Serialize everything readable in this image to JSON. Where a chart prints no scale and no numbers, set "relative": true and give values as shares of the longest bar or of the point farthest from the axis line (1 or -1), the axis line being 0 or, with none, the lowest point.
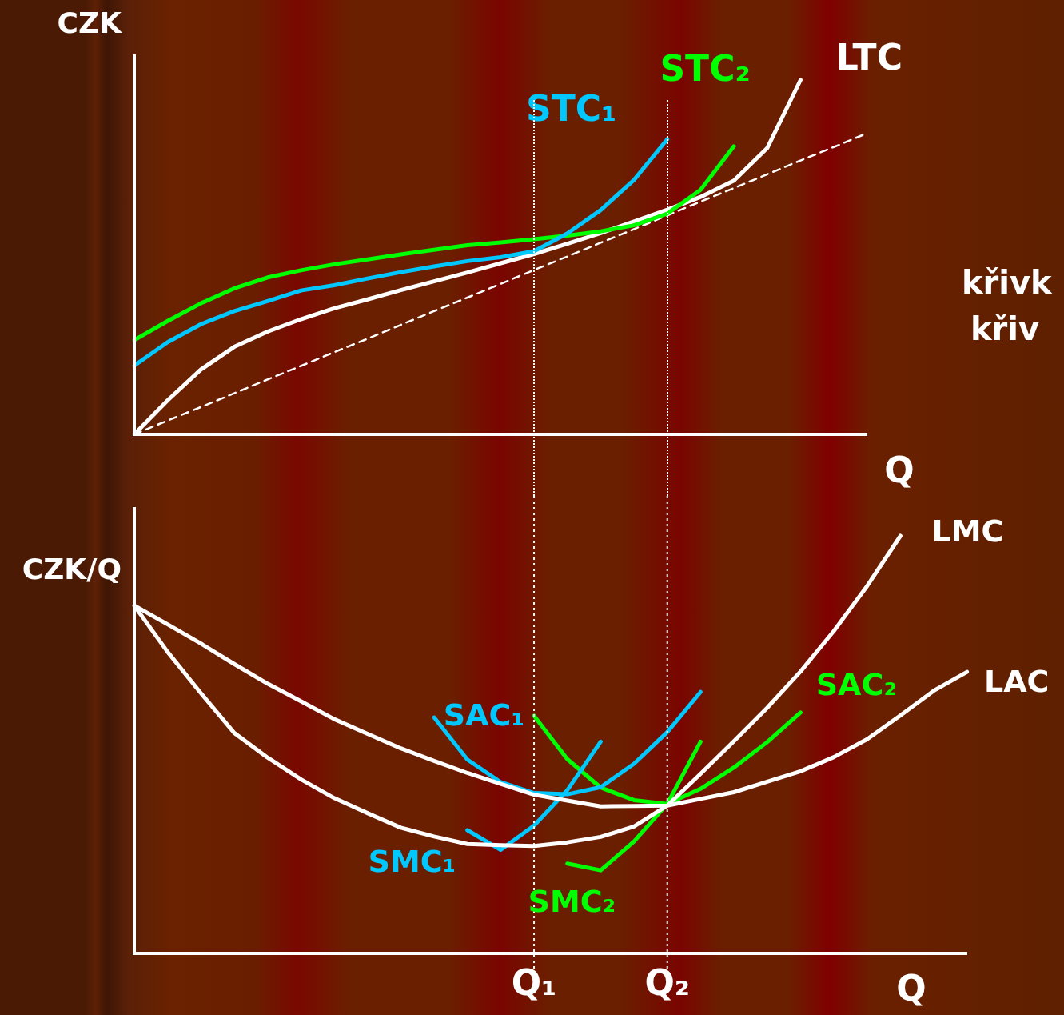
{
  "chart_data": [
    {
      "type": "line",
      "relative": true,
      "ylabel": "CZK",
      "xlabel": "Q",
      "tick_labels": false,
      "annotations": [
        "křivk",
        "křiv"
      ],
      "categories": [
        null,
        null,
        null,
        null,
        null,
        null,
        null,
        null,
        null,
        null,
        null,
        null,
        null,
        null,
        null,
        null,
        null,
        null,
        null,
        null,
        null,
        null,
        null
      ],
      "series": [
        {
          "name": "STC₁",
          "color": "#00c8ff",
          "values": [
            0.194,
            0.26,
            0.311,
            0.348,
            0.376,
            0.406,
            0.421,
            0.44,
            0.458,
            0.474,
            0.489,
            0.5,
            0.517,
            0.567,
            0.633,
            0.718,
            0.833,
            null,
            null,
            null,
            null,
            null,
            null
          ]
        },
        {
          "name": "STC₂",
          "color": "#00ff00",
          "values": [
            0.266,
            0.32,
            0.37,
            0.412,
            0.443,
            0.463,
            0.48,
            0.494,
            0.508,
            0.521,
            0.534,
            0.542,
            0.551,
            0.561,
            0.573,
            0.59,
            0.623,
            0.69,
            0.813,
            null,
            null,
            null,
            null
          ]
        },
        {
          "name": "LTC",
          "color": "#ffffff",
          "values": [
            0,
            0.096,
            0.183,
            0.247,
            0.29,
            0.325,
            0.356,
            0.381,
            0.407,
            0.432,
            0.457,
            0.483,
            0.509,
            0.538,
            0.568,
            0.601,
            0.634,
            0.67,
            0.716,
            0.808,
            1,
            null,
            null
          ]
        },
        {
          "color": "#ffffff",
          "line_style": "dashed",
          "values": [
            0,
            0.039,
            0.077,
            0.116,
            0.155,
            0.193,
            0.232,
            0.27,
            0.309,
            0.348,
            0.386,
            0.425,
            0.464,
            0.502,
            0.541,
            0.579,
            0.618,
            0.657,
            0.695,
            0.734,
            0.773,
            0.811,
            0.85
          ]
        }
      ]
    },
    {
      "type": "line",
      "relative": true,
      "ylabel": "CZK/Q",
      "xlabel": "Q",
      "tick_labels": "x",
      "categories": [
        null,
        null,
        null,
        null,
        null,
        null,
        null,
        null,
        null,
        null,
        null,
        null,
        "Q₁",
        null,
        null,
        null,
        "Q₂",
        null,
        null,
        null,
        null,
        null,
        null,
        null,
        null,
        null
      ],
      "ref_lines": [
        {
          "axis": "x",
          "value": "Q₁",
          "color": "#ffffff",
          "line_style": "dotted"
        },
        {
          "axis": "x",
          "value": "Q₂",
          "color": "#ffffff",
          "line_style": "dotted"
        }
      ],
      "series": [
        {
          "name": "LMC",
          "color": "#ffffff",
          "values": [
            0.833,
            0.722,
            0.623,
            0.528,
            0.469,
            0.417,
            0.372,
            0.336,
            0.301,
            0.28,
            0.262,
            0.259,
            0.257,
            0.266,
            0.279,
            0.304,
            0.354,
            0.43,
            0.508,
            0.588,
            0.675,
            0.772,
            0.88,
            1,
            null,
            null
          ]
        },
        {
          "name": "LAC",
          "color": "#ffffff",
          "values": [
            0.833,
            0.788,
            0.742,
            0.693,
            0.646,
            0.604,
            0.561,
            0.526,
            0.491,
            0.461,
            0.432,
            0.406,
            0.38,
            0.366,
            0.352,
            0.353,
            0.354,
            0.37,
            0.386,
            0.411,
            0.436,
            0.47,
            0.513,
            0.57,
            0.629,
            0.674
          ]
        },
        {
          "name": "SAC₁",
          "color": "#00c8ff",
          "values": [
            null,
            null,
            null,
            null,
            null,
            null,
            null,
            null,
            null,
            0.565,
            0.464,
            0.41,
            0.384,
            0.381,
            0.398,
            0.454,
            0.53,
            0.626,
            null,
            null,
            null,
            null,
            null,
            null,
            null,
            null
          ]
        },
        {
          "name": "SMC₁",
          "color": "#00c8ff",
          "values": [
            null,
            null,
            null,
            null,
            null,
            null,
            null,
            null,
            null,
            null,
            0.295,
            0.248,
            0.306,
            0.391,
            0.507,
            null,
            null,
            null,
            null,
            null,
            null,
            null,
            null,
            null,
            null,
            null
          ]
        },
        {
          "name": "SAC₂",
          "color": "#00ff00",
          "values": [
            null,
            null,
            null,
            null,
            null,
            null,
            null,
            null,
            null,
            null,
            null,
            null,
            0.569,
            0.465,
            0.397,
            0.367,
            0.358,
            0.394,
            0.445,
            0.506,
            0.577,
            null,
            null,
            null,
            null,
            null
          ]
        },
        {
          "name": "SMC₂",
          "color": "#00ff00",
          "values": [
            null,
            null,
            null,
            null,
            null,
            null,
            null,
            null,
            null,
            null,
            null,
            null,
            null,
            0.215,
            0.199,
            0.268,
            0.358,
            0.507,
            null,
            null,
            null,
            null,
            null,
            null,
            null,
            null
          ]
        }
      ]
    }
  ]
}
